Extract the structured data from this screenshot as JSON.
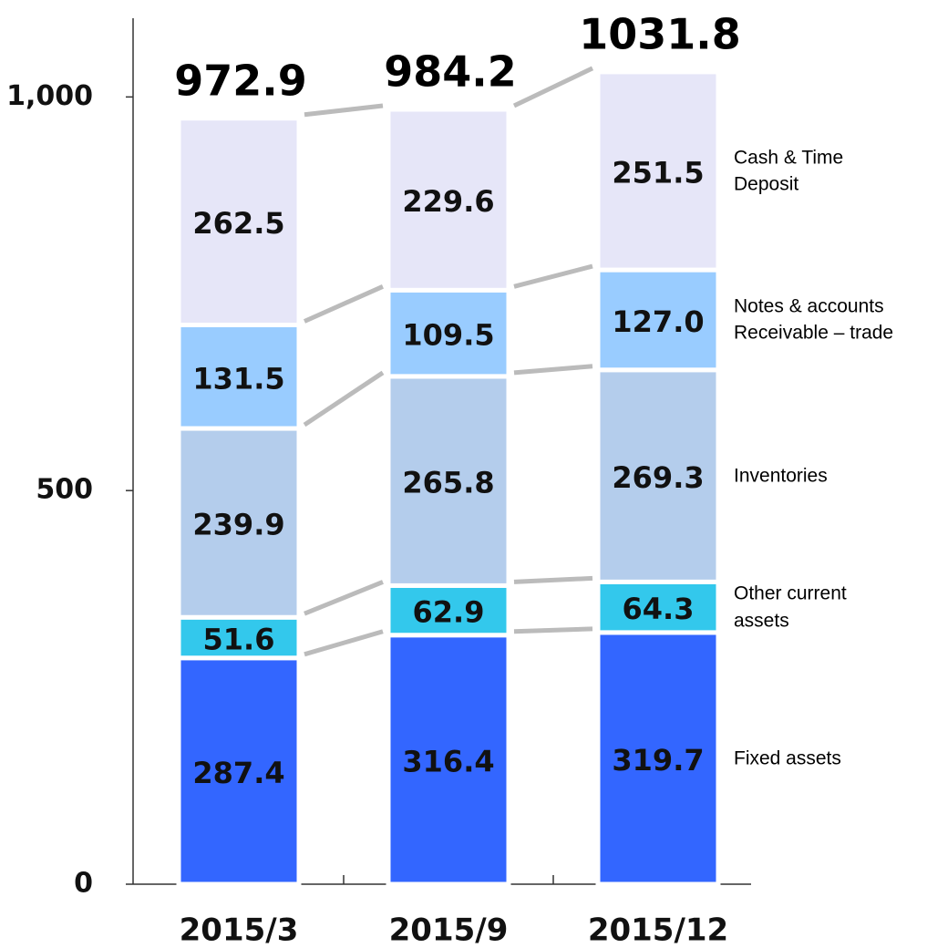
{
  "chart_data": {
    "type": "stacked_bar",
    "categories": [
      "2015/3",
      "2015/9",
      "2015/12"
    ],
    "series": [
      {
        "name": "Fixed assets",
        "color": "#3366ff",
        "values": [
          287.4,
          316.4,
          319.7
        ]
      },
      {
        "name": "Other current assets",
        "color": "#33c8ec",
        "values": [
          51.6,
          62.9,
          64.3
        ]
      },
      {
        "name": "Inventories",
        "color": "#b4cdec",
        "values": [
          239.9,
          265.8,
          269.3
        ]
      },
      {
        "name": "Notes & accounts Receivable – trade",
        "color": "#99ccff",
        "values": [
          131.5,
          109.5,
          127
        ],
        "value_labels": [
          "131.5",
          "109.5",
          "127.0"
        ]
      },
      {
        "name": "Cash & Time Deposit",
        "color": "#e6e6f8",
        "values": [
          262.5,
          229.6,
          251.5
        ]
      }
    ],
    "totals": [
      972.9,
      984.2,
      1031.8
    ],
    "ylim": [
      0,
      1100
    ],
    "yticks": [
      0,
      500,
      {
        "value": 1000,
        "label": "1,000"
      }
    ]
  }
}
